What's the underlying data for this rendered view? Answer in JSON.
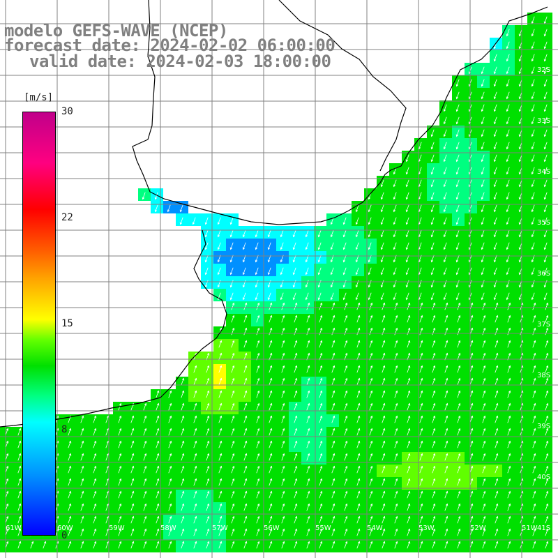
{
  "header": {
    "model": "modelo GEFS-WAVE (NCEP)",
    "forecast": "forecast date: 2024-02-02 06:00:00",
    "valid": "valid date: 2024-02-03 18:00:00"
  },
  "colorbar": {
    "unit": "[m/s]",
    "ticks": [
      "0",
      "8",
      "15",
      "22",
      "30"
    ],
    "min": 0,
    "max": 30,
    "colors": [
      "#0000ff",
      "#0090ff",
      "#00ffff",
      "#00ff80",
      "#00e000",
      "#60ff00",
      "#ffff00",
      "#ffa000",
      "#ff6000",
      "#ff0000",
      "#ff0080",
      "#c0008a"
    ]
  },
  "map": {
    "lat_labels": [
      "32S",
      "33S",
      "34S",
      "35S",
      "36S",
      "37S",
      "38S",
      "39S",
      "40S",
      "41S"
    ],
    "lon_labels": [
      "61W",
      "60W",
      "59W",
      "58W",
      "57W",
      "56W",
      "55W",
      "54W",
      "53W",
      "52W",
      "51W"
    ],
    "land_color": "#ffffff",
    "grid_color": "#808080",
    "coast_color": "#000000",
    "arrow_color": "#ffffff"
  }
}
